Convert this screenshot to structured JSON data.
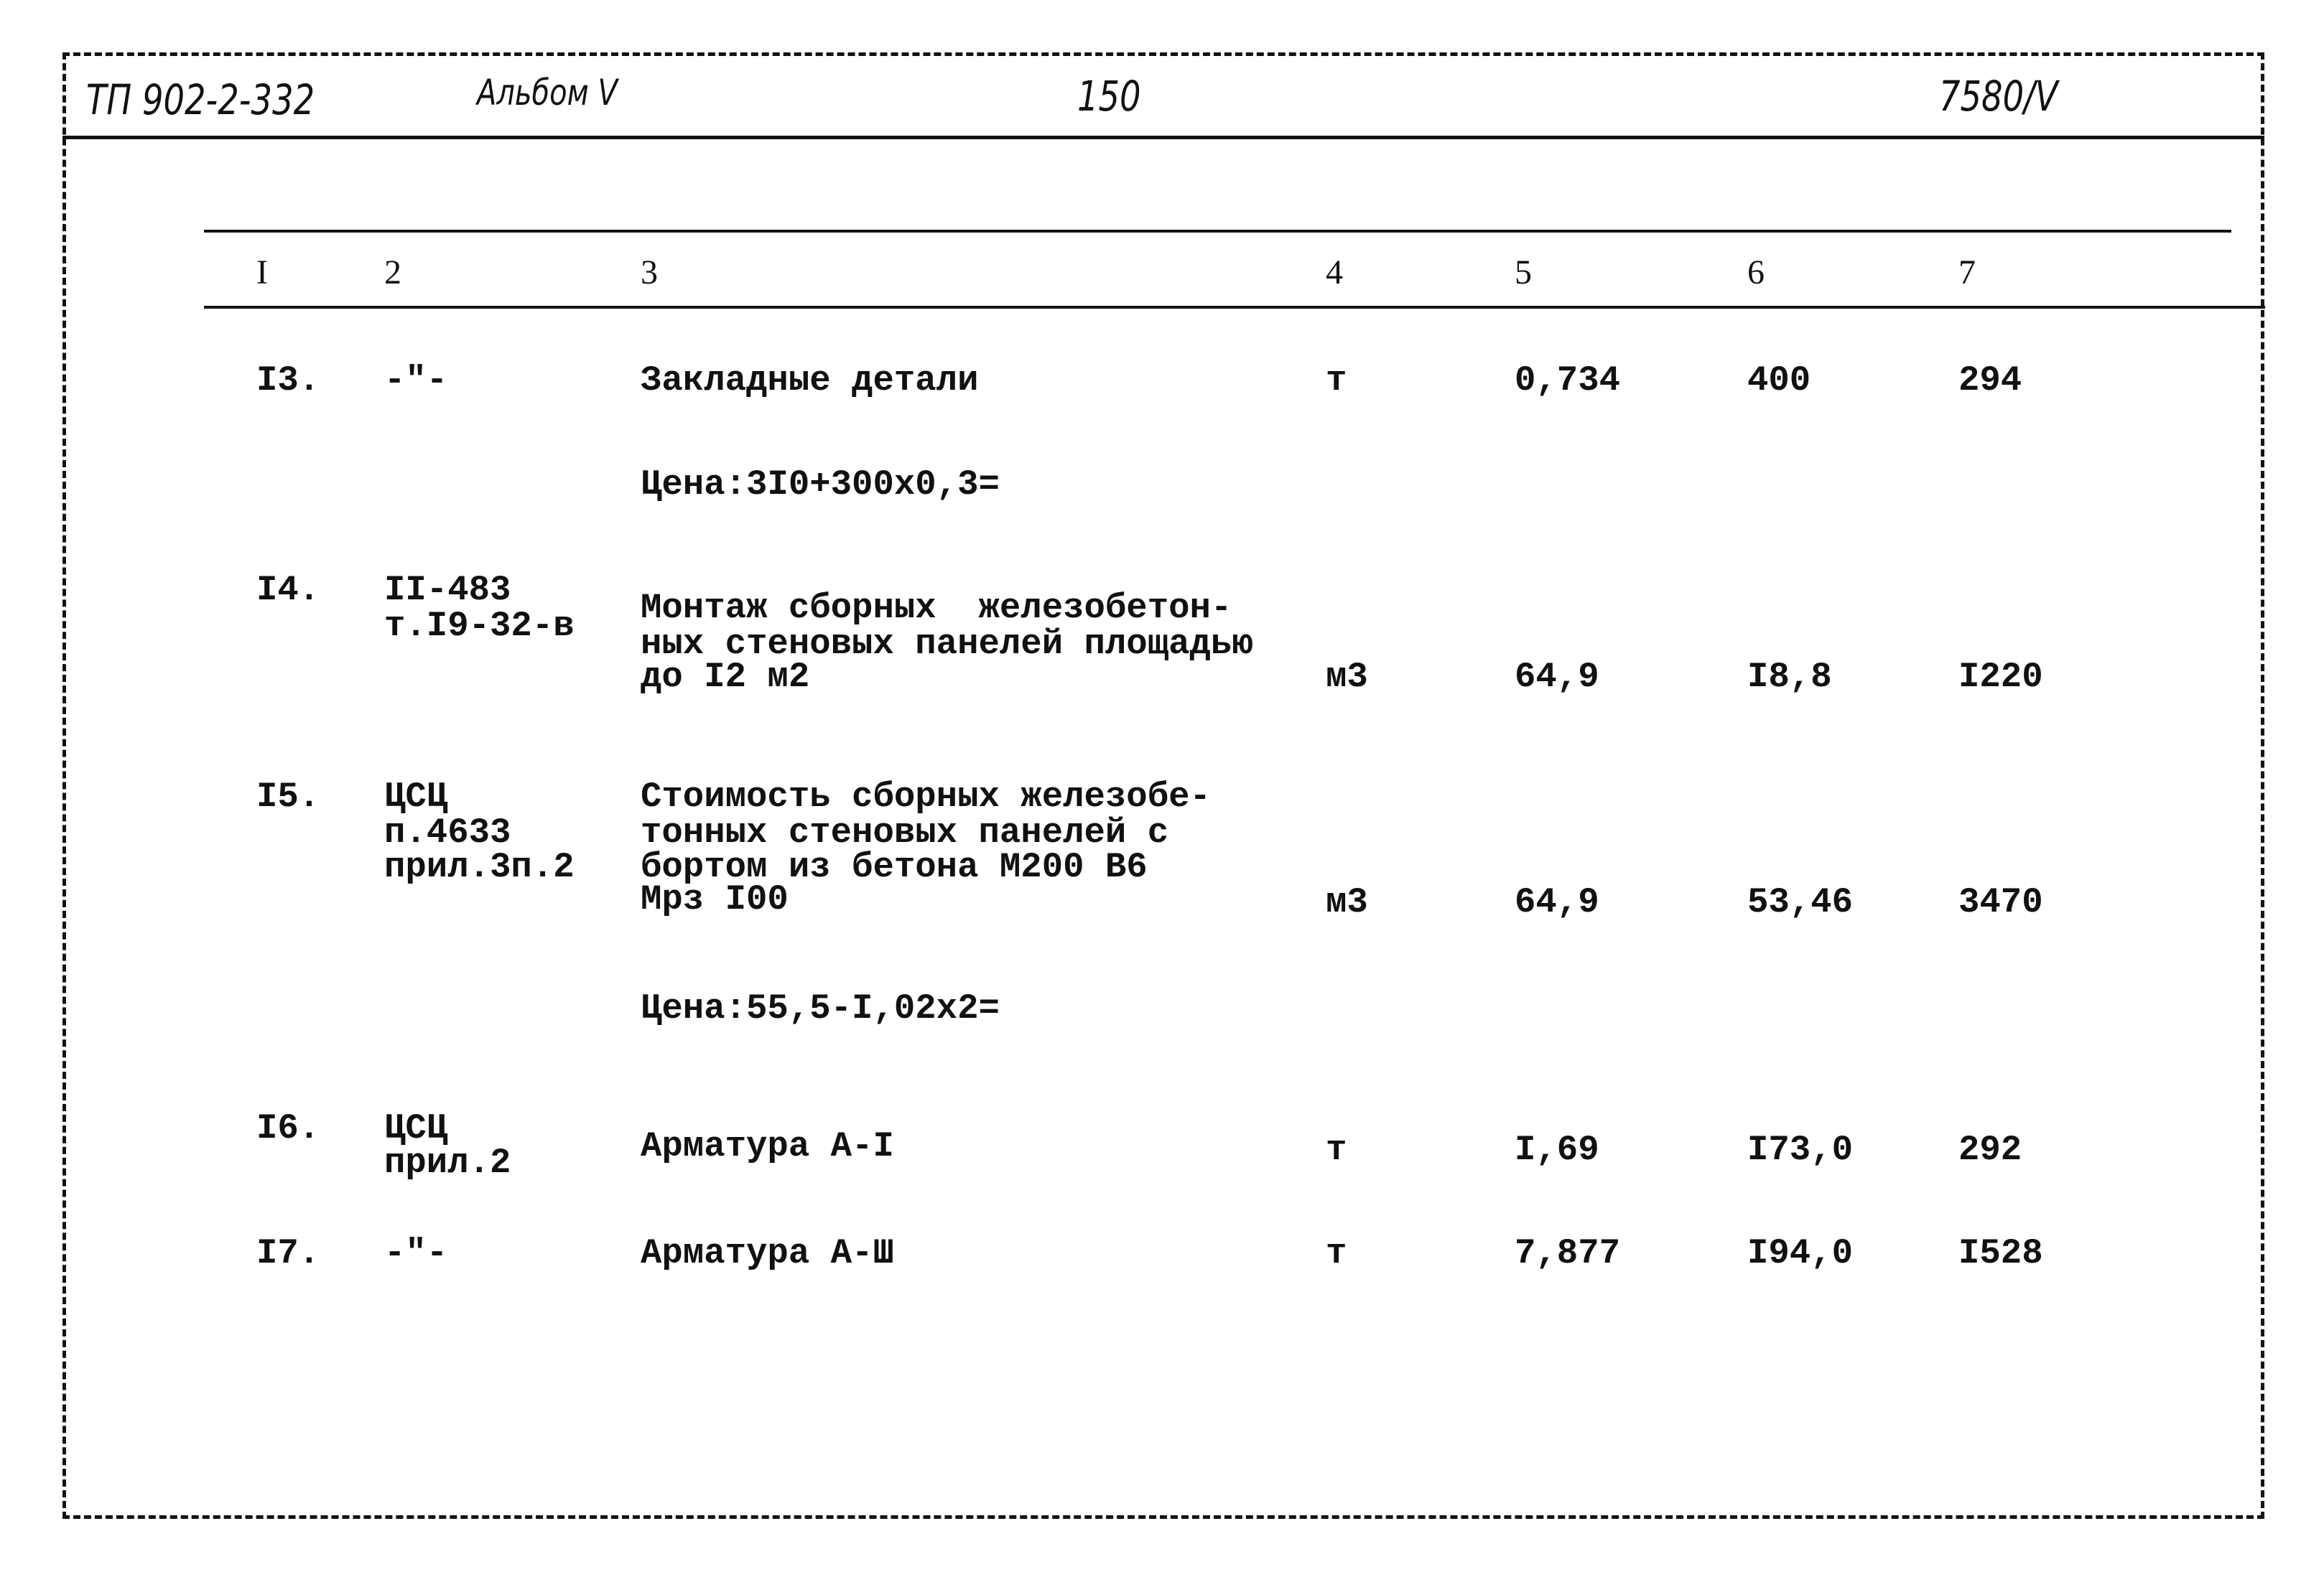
{
  "header": {
    "project": "ТП 902-2-332",
    "album": "Альбом V",
    "page": "150",
    "code": "7580/V"
  },
  "table": {
    "columns": [
      "I",
      "2",
      "3",
      "4",
      "5",
      "6",
      "7"
    ],
    "rows": [
      {
        "num": "I3.",
        "ref": [
          "-\"-"
        ],
        "desc": [
          "Закладные детали"
        ],
        "unit": "т",
        "qty": "0,734",
        "price": "400",
        "total": "294",
        "note": "Цена:3I0+300х0,3="
      },
      {
        "num": "I4.",
        "ref": [
          "II-483",
          "т.I9-32-в"
        ],
        "desc": [
          "Монтаж сборных  железобетон-",
          "ных стеновых панелей площадью",
          "до I2 м2"
        ],
        "unit": "м3",
        "qty": "64,9",
        "price": "I8,8",
        "total": "I220"
      },
      {
        "num": "I5.",
        "ref": [
          "ЦСЦ",
          "п.4633",
          "прил.3п.2"
        ],
        "desc": [
          "Стоимость сборных железобе-",
          "тонных стеновых панелей с",
          "бортом из бетона М200 В6",
          "Мрз I00"
        ],
        "unit": "м3",
        "qty": "64,9",
        "price": "53,46",
        "total": "3470",
        "note": "Цена:55,5-I,02х2="
      },
      {
        "num": "I6.",
        "ref": [
          "ЦСЦ",
          "прил.2"
        ],
        "desc": [
          "Арматура А-I"
        ],
        "unit": "т",
        "qty": "I,69",
        "price": "I73,0",
        "total": "292"
      },
      {
        "num": "I7.",
        "ref": [
          "-\"-"
        ],
        "desc": [
          "Арматура А-Ш"
        ],
        "unit": "т",
        "qty": "7,877",
        "price": "I94,0",
        "total": "I528"
      }
    ]
  }
}
